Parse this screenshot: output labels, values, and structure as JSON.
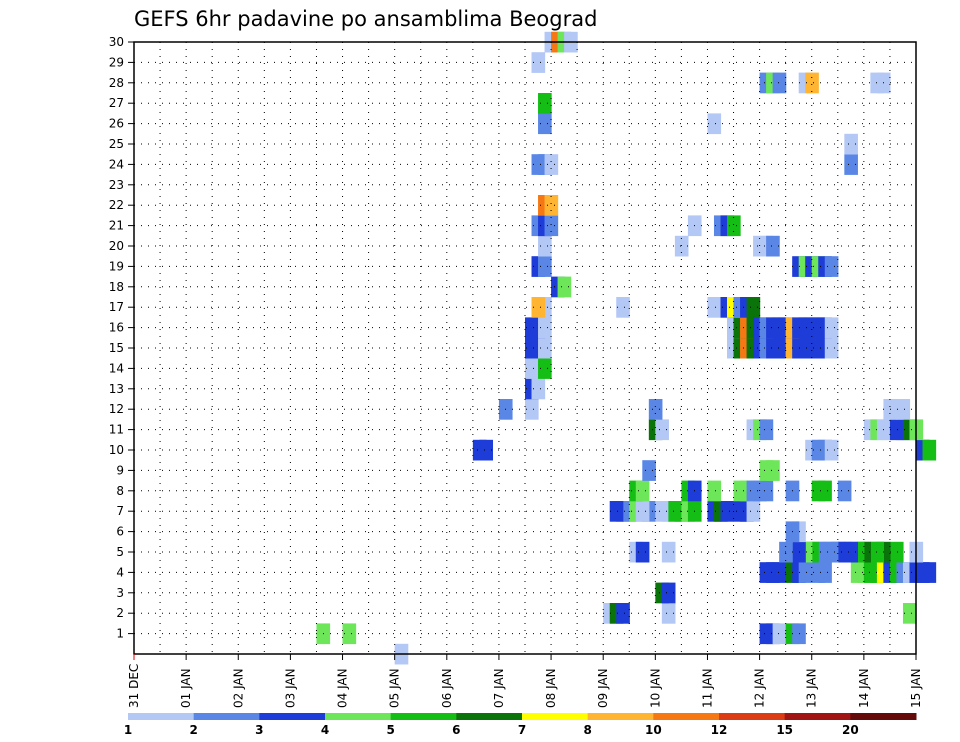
{
  "chart_data": {
    "type": "heatmap",
    "title": "GEFS 6hr padavine po ansamblima Beograd",
    "xlabel": "",
    "ylabel": "",
    "x_tick_labels": [
      "31 DEC",
      "01 JAN",
      "02 JAN",
      "03 JAN",
      "04 JAN",
      "05 JAN",
      "06 JAN",
      "07 JAN",
      "08 JAN",
      "09 JAN",
      "10 JAN",
      "11 JAN",
      "12 JAN",
      "13 JAN",
      "14 JAN",
      "15 JAN"
    ],
    "xlim_days": [
      0,
      15
    ],
    "x_step_days": 0.25,
    "y_tick_labels": [
      "1",
      "2",
      "3",
      "4",
      "5",
      "6",
      "7",
      "8",
      "9",
      "10",
      "11",
      "12",
      "13",
      "14",
      "15",
      "16",
      "17",
      "18",
      "19",
      "20",
      "21",
      "22",
      "23",
      "24",
      "25",
      "26",
      "27",
      "28",
      "29",
      "30"
    ],
    "ylim": [
      0,
      30
    ],
    "grid": true,
    "colorbar": {
      "placement": "bottom",
      "tick_labels": [
        "1",
        "2",
        "3",
        "4",
        "5",
        "6",
        "7",
        "8",
        "10",
        "12",
        "15",
        "20"
      ],
      "colors": [
        "#b4c8f5",
        "#5a87e6",
        "#1e3cd7",
        "#6ee65a",
        "#14be14",
        "#0a730a",
        "#ffff00",
        "#ffb432",
        "#f57814",
        "#dc3c14",
        "#a01414",
        "#640a0a"
      ]
    },
    "cells": [
      [
        0,
        10,
        1.5
      ],
      [
        1,
        7,
        4
      ],
      [
        1,
        8,
        4.5
      ],
      [
        1,
        24,
        3.5
      ],
      [
        1,
        24.25,
        3
      ],
      [
        1,
        24.5,
        1.5
      ],
      [
        1,
        25,
        5
      ],
      [
        1,
        25.25,
        2
      ],
      [
        1,
        32,
        1.5
      ],
      [
        1,
        32.25,
        6
      ],
      [
        1,
        33,
        1.5
      ],
      [
        1,
        33.25,
        1.5
      ],
      [
        2,
        18,
        1.5
      ],
      [
        2,
        18.25,
        6
      ],
      [
        2,
        18.5,
        3
      ],
      [
        2,
        20.25,
        1.5
      ],
      [
        2,
        29.5,
        4.5
      ],
      [
        3,
        20,
        6
      ],
      [
        3,
        20.25,
        3
      ],
      [
        4,
        24,
        3
      ],
      [
        4,
        24.25,
        3
      ],
      [
        4,
        24.5,
        3
      ],
      [
        4,
        25,
        6
      ],
      [
        4,
        25.25,
        3
      ],
      [
        4,
        25.5,
        2
      ],
      [
        4,
        26,
        2
      ],
      [
        4,
        26.25,
        2
      ],
      [
        4,
        27.5,
        4
      ],
      [
        4,
        27.75,
        4
      ],
      [
        4,
        28,
        5.5
      ],
      [
        4,
        28.25,
        5
      ],
      [
        4,
        28.5,
        7.5
      ],
      [
        4,
        28.75,
        3
      ],
      [
        4,
        29,
        5
      ],
      [
        4,
        29.25,
        2
      ],
      [
        4,
        29.5,
        1.5
      ],
      [
        4,
        29.75,
        3.5
      ],
      [
        4,
        30,
        3
      ],
      [
        4,
        30.25,
        3
      ],
      [
        5,
        19,
        1.5
      ],
      [
        5,
        19.25,
        3
      ],
      [
        5,
        20.25,
        1.5
      ],
      [
        5,
        29.75,
        1.5
      ],
      [
        5,
        29,
        5
      ],
      [
        5,
        28.5,
        6.5
      ],
      [
        5,
        28.25,
        5.5
      ],
      [
        5,
        28,
        5
      ],
      [
        5,
        27.75,
        6
      ],
      [
        5,
        27.5,
        5
      ],
      [
        5,
        27.25,
        3
      ],
      [
        5,
        27,
        3
      ],
      [
        5,
        26.75,
        3
      ],
      [
        5,
        26.5,
        2
      ],
      [
        5,
        26.25,
        2
      ],
      [
        5,
        26,
        2
      ],
      [
        5,
        25.75,
        5
      ],
      [
        5,
        25.5,
        4
      ],
      [
        5,
        25.25,
        3
      ],
      [
        5,
        25,
        3
      ],
      [
        5,
        24.75,
        2
      ],
      [
        6,
        25.25,
        1.5
      ],
      [
        6,
        25,
        2
      ],
      [
        7,
        18.75,
        2
      ],
      [
        7,
        18.5,
        2
      ],
      [
        7,
        18.25,
        3
      ],
      [
        7,
        19,
        4
      ],
      [
        7,
        19.5,
        2
      ],
      [
        7,
        19.25,
        1.5
      ],
      [
        7,
        20,
        1.5
      ],
      [
        7,
        20.25,
        1.5
      ],
      [
        7,
        20.5,
        5
      ],
      [
        7,
        20.75,
        5
      ],
      [
        7,
        21,
        4
      ],
      [
        7,
        21.25,
        5
      ],
      [
        7,
        22,
        3
      ],
      [
        7,
        22.25,
        6
      ],
      [
        7,
        22.5,
        3
      ],
      [
        7,
        23,
        3
      ],
      [
        7,
        23.25,
        3
      ],
      [
        7,
        23.5,
        1.5
      ],
      [
        8,
        19,
        5
      ],
      [
        8,
        19.25,
        4
      ],
      [
        8,
        21,
        5
      ],
      [
        8,
        21.25,
        3
      ],
      [
        8,
        22,
        4
      ],
      [
        8,
        23,
        4
      ],
      [
        8,
        23.25,
        4
      ],
      [
        8,
        23.5,
        2
      ],
      [
        8,
        23.75,
        2
      ],
      [
        8,
        24,
        2
      ],
      [
        8,
        25,
        2
      ],
      [
        8,
        26,
        5
      ],
      [
        8,
        26.25,
        5
      ],
      [
        8,
        27,
        2
      ],
      [
        9,
        19.5,
        2
      ],
      [
        9,
        24,
        4
      ],
      [
        9,
        24.25,
        4
      ],
      [
        10,
        13,
        3
      ],
      [
        10,
        13.25,
        3.5
      ],
      [
        10,
        30,
        3
      ],
      [
        10,
        30.25,
        5
      ],
      [
        10,
        25.75,
        1.5
      ],
      [
        10,
        26,
        2
      ],
      [
        10,
        26.25,
        2
      ],
      [
        10,
        26.5,
        1.5
      ],
      [
        10,
        32.5,
        1.5
      ],
      [
        11,
        19.75,
        6
      ],
      [
        11,
        20,
        1.5
      ],
      [
        11,
        23.5,
        1.5
      ],
      [
        11,
        23.75,
        4.5
      ],
      [
        11,
        24,
        2
      ],
      [
        11,
        28,
        1.5
      ],
      [
        11,
        28.25,
        4.5
      ],
      [
        11,
        28.5,
        1.5
      ],
      [
        11,
        28.75,
        1.5
      ],
      [
        11,
        29,
        3
      ],
      [
        11,
        29.25,
        3.5
      ],
      [
        11,
        29.5,
        6.5
      ],
      [
        11,
        29.75,
        4
      ],
      [
        12,
        14,
        2
      ],
      [
        12,
        15,
        1.5
      ],
      [
        12,
        19.75,
        2
      ],
      [
        12,
        28.75,
        1.5
      ],
      [
        12,
        29,
        1.5
      ],
      [
        12,
        29.25,
        1.5
      ],
      [
        13,
        15,
        3
      ],
      [
        13,
        15.25,
        1.5
      ],
      [
        14,
        15,
        1.5
      ],
      [
        14,
        15.25,
        1.5
      ],
      [
        14,
        15.5,
        5.5
      ],
      [
        15,
        15,
        3
      ],
      [
        15,
        15.25,
        3
      ],
      [
        15,
        15.5,
        1.5
      ],
      [
        15,
        22.75,
        1.5
      ],
      [
        15,
        23,
        6
      ],
      [
        15,
        23.25,
        10
      ],
      [
        15,
        23.5,
        6.5
      ],
      [
        15,
        23.75,
        3
      ],
      [
        15,
        24,
        2
      ],
      [
        15,
        24.25,
        3
      ],
      [
        15,
        24.5,
        3
      ],
      [
        15,
        24.75,
        3
      ],
      [
        15,
        25,
        8
      ],
      [
        15,
        25.25,
        3
      ],
      [
        15,
        25.5,
        3
      ],
      [
        15,
        25.75,
        3
      ],
      [
        15,
        26,
        3
      ],
      [
        15,
        26.25,
        3
      ],
      [
        15,
        26.5,
        1.5
      ],
      [
        16,
        15,
        3
      ],
      [
        16,
        15.25,
        3
      ],
      [
        16,
        15.5,
        1.5
      ],
      [
        16,
        22.75,
        1.5
      ],
      [
        16,
        23,
        6
      ],
      [
        16,
        23.25,
        10
      ],
      [
        16,
        23.5,
        6.5
      ],
      [
        16,
        23.75,
        3
      ],
      [
        16,
        24,
        2
      ],
      [
        16,
        24.25,
        3
      ],
      [
        16,
        24.5,
        3
      ],
      [
        16,
        24.75,
        3
      ],
      [
        16,
        25,
        8
      ],
      [
        16,
        25.25,
        3
      ],
      [
        16,
        25.5,
        3
      ],
      [
        16,
        25.75,
        3
      ],
      [
        16,
        26,
        3
      ],
      [
        16,
        26.25,
        3
      ],
      [
        16,
        26.5,
        1.5
      ],
      [
        17,
        15.5,
        1.5
      ],
      [
        17,
        15.25,
        8
      ],
      [
        17,
        18.5,
        1.5
      ],
      [
        17,
        22,
        1.5
      ],
      [
        17,
        22.5,
        3
      ],
      [
        17,
        22.75,
        7.5
      ],
      [
        17,
        23,
        2
      ],
      [
        17,
        23.25,
        3
      ],
      [
        17,
        23.5,
        6.5
      ],
      [
        18,
        16,
        3
      ],
      [
        18,
        16.25,
        4.5
      ],
      [
        19,
        15.25,
        3
      ],
      [
        19,
        15.5,
        2
      ],
      [
        19,
        25.25,
        3
      ],
      [
        19,
        25.5,
        4.5
      ],
      [
        19,
        25.75,
        3
      ],
      [
        19,
        26,
        4.5
      ],
      [
        19,
        26.25,
        3
      ],
      [
        19,
        26.5,
        2
      ],
      [
        20,
        15.5,
        1.5
      ],
      [
        20,
        20.75,
        1.5
      ],
      [
        20,
        23.75,
        1.5
      ],
      [
        20,
        24,
        1.5
      ],
      [
        20,
        24.25,
        2
      ],
      [
        20,
        32.75,
        2
      ],
      [
        20,
        33,
        4.5
      ],
      [
        20,
        33.25,
        2
      ],
      [
        21,
        15.25,
        2
      ],
      [
        21,
        15.5,
        3
      ],
      [
        21,
        15.75,
        2
      ],
      [
        21,
        21.25,
        1.5
      ],
      [
        21,
        22.25,
        2
      ],
      [
        21,
        22.5,
        3
      ],
      [
        21,
        22.75,
        5.5
      ],
      [
        21,
        32.25,
        2
      ],
      [
        21,
        32.5,
        1.5
      ],
      [
        22,
        15.5,
        11
      ],
      [
        22,
        15.75,
        8
      ],
      [
        24,
        15.25,
        2
      ],
      [
        24,
        15.5,
        2
      ],
      [
        24,
        15.75,
        1.5
      ],
      [
        24,
        27.25,
        2
      ],
      [
        25,
        27.25,
        1.5
      ],
      [
        26,
        15.5,
        2
      ],
      [
        26,
        22,
        1.5
      ],
      [
        27,
        15.5,
        5.5
      ],
      [
        28,
        24,
        2
      ],
      [
        28,
        24.25,
        4.5
      ],
      [
        28,
        24.5,
        2
      ],
      [
        28,
        25.5,
        1.5
      ],
      [
        28,
        25.75,
        9
      ],
      [
        28,
        28.25,
        1.5
      ],
      [
        28,
        28.5,
        1.5
      ],
      [
        29,
        15.25,
        1.5
      ],
      [
        30,
        15.75,
        1.5
      ],
      [
        30,
        16,
        11
      ],
      [
        30,
        16.25,
        4.5
      ],
      [
        30,
        16.5,
        1.5
      ]
    ]
  }
}
